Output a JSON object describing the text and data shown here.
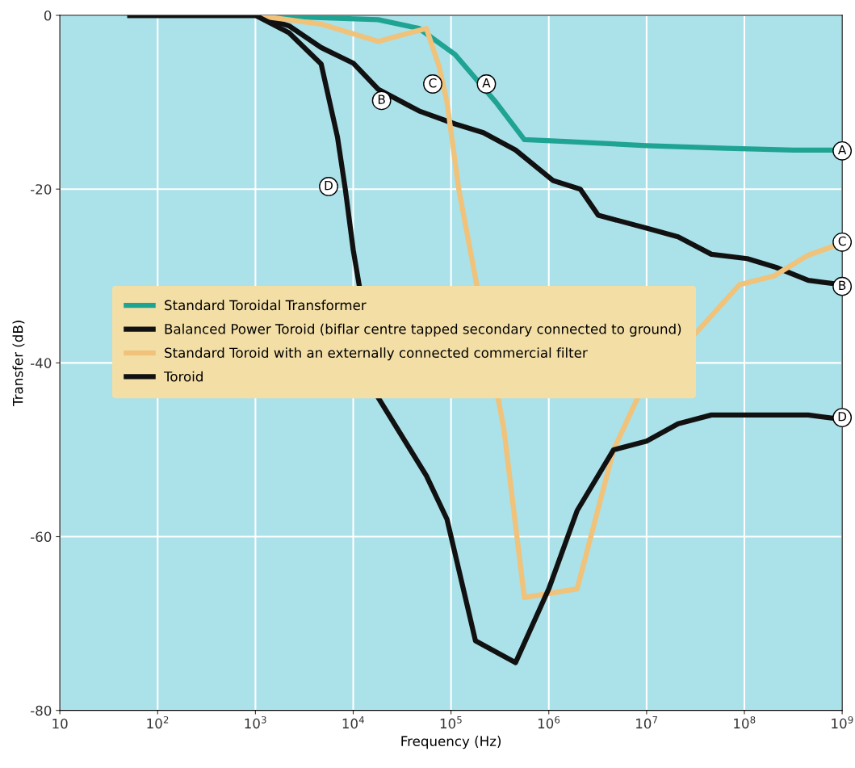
{
  "chart_data": {
    "type": "line",
    "xlabel": "Frequency (Hz)",
    "ylabel": "Transfer (dB)",
    "log": "x",
    "xlim": [
      10,
      1000000000
    ],
    "xticks": [
      10,
      {
        "value": 100,
        "label": "10$^{2}$"
      },
      {
        "value": 1000,
        "label": "10$^{3}$"
      },
      {
        "value": 10000,
        "label": "10$^{4}$"
      },
      {
        "value": 100000,
        "label": "10$^{5}$"
      },
      {
        "value": 1000000,
        "label": "10$^{6}$"
      },
      {
        "value": 10000000,
        "label": "10$^{7}$"
      },
      {
        "value": 100000000,
        "label": "10$^{8}$"
      },
      {
        "value": 1000000000,
        "label": "10$^{9}$"
      }
    ],
    "ylim": [
      -80,
      0
    ],
    "yticks": [
      -80,
      -60,
      -40,
      -20,
      0
    ],
    "grid": true,
    "legend": "center",
    "marker": "none",
    "line_style": "solid",
    "series": [
      {
        "name": "Standard Toroidal Transformer",
        "color": "#1fa392",
        "x": [
          1000,
          18000,
          47000,
          110000,
          288000,
          562000,
          1450000,
          10000000,
          66000000,
          320000000,
          1000000000
        ],
        "values": [
          0,
          -0.5,
          -1.5,
          -4.5,
          -10,
          -14.3,
          -14.5,
          -15,
          -15.3,
          -15.5,
          -15.5
        ]
      },
      {
        "name": "Balanced Power Toroid (biflar centre tapped secondary connected to ground)",
        "color": "#111111",
        "x": [
          52,
          1000,
          2200,
          4700,
          10000,
          18000,
          47000,
          110000,
          214000,
          457000,
          1100000,
          2100000,
          3200000,
          10000000,
          21000000,
          46000000,
          107000000,
          210000000,
          450000000,
          1000000000
        ],
        "values": [
          0,
          0,
          -1.2,
          -3.7,
          -5.5,
          -8.5,
          -11,
          -12.5,
          -13.5,
          -15.5,
          -19,
          -20,
          -23,
          -24.5,
          -25.5,
          -27.5,
          -28,
          -29,
          -30.5,
          -31
        ]
      },
      {
        "name": "Standard Toroid with an externally connected commercial filter",
        "color": "#f0c27a",
        "x": [
          1000,
          4700,
          18000,
          56000,
          76000,
          91000,
          120000,
          347000,
          562000,
          1950000,
          4600000,
          8100000,
          89000000,
          200000000,
          450000000,
          1000000000
        ],
        "values": [
          0,
          -1,
          -3,
          -1.5,
          -6,
          -10,
          -20,
          -47.6,
          -67,
          -66,
          -50,
          -44,
          -31,
          -30,
          -27.6,
          -26.2
        ]
      },
      {
        "name": "Toroid",
        "color": "#111111",
        "x": [
          52,
          1000,
          2200,
          4700,
          6900,
          8300,
          10000,
          18000,
          56000,
          91000,
          178000,
          457000,
          1000000,
          1950000,
          4600000,
          10000000,
          21000000,
          46000000,
          107000000,
          450000000,
          1000000000
        ],
        "values": [
          0,
          0,
          -2,
          -5.6,
          -14,
          -20,
          -27,
          -44,
          -53,
          -58,
          -72,
          -74.5,
          -66,
          -57,
          -50,
          -49,
          -47,
          -46,
          -46,
          -46,
          -46.5
        ]
      }
    ],
    "annotations": [
      {
        "text": "A",
        "x": 230000,
        "y": -7.9
      },
      {
        "text": "A",
        "x": 1000000000,
        "y": -15.6
      },
      {
        "text": "B",
        "x": 19500,
        "y": -9.8
      },
      {
        "text": "B",
        "x": 1000000000,
        "y": -31.2
      },
      {
        "text": "C",
        "x": 65000,
        "y": -7.9
      },
      {
        "text": "C",
        "x": 1000000000,
        "y": -26.1
      },
      {
        "text": "D",
        "x": 5600,
        "y": -19.7
      },
      {
        "text": "D",
        "x": 1000000000,
        "y": -46.3
      }
    ]
  }
}
